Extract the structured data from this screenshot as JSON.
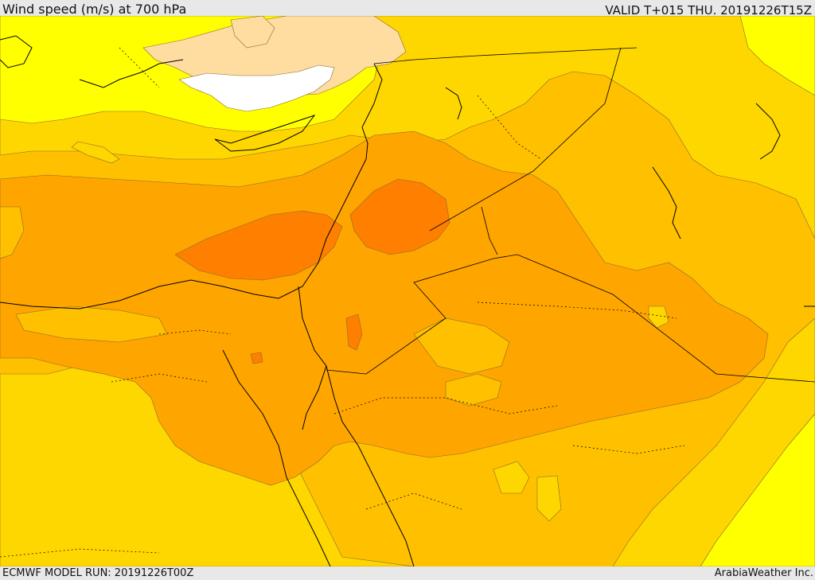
{
  "header": {
    "title": "Wind speed (m/s) at 700 hPa",
    "valid": "VALID T+015 THU. 20191226T15Z"
  },
  "footer": {
    "model_run": "ECMWF MODEL RUN: 20191226T00Z",
    "credit": "ArabiaWeather Inc."
  },
  "map": {
    "variable": "wind speed",
    "level": "700 hPa",
    "units": "m/s",
    "palette": {
      "white": "#ffffff",
      "peach": "#ffdda0",
      "yellow": "#ffff00",
      "gold": "#ffd700",
      "light_orange": "#ffc000",
      "orange": "#ffa500",
      "dark_orange": "#ff7f00",
      "coast_line": "#000000",
      "contour_line": "#8a6a30"
    }
  }
}
